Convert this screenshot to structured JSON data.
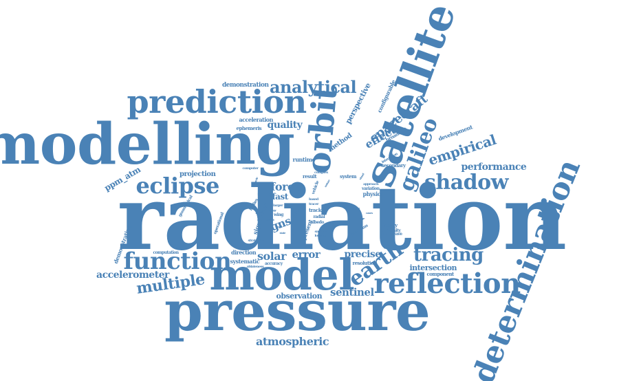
{
  "cloud": {
    "color": "#4a82b6",
    "words": [
      {
        "key": "radiation",
        "text": "radiation"
      },
      {
        "key": "modelling",
        "text": "modelling"
      },
      {
        "key": "pressure",
        "text": "pressure"
      },
      {
        "key": "model",
        "text": "model"
      },
      {
        "key": "satellite",
        "text": "satellite"
      },
      {
        "key": "determination",
        "text": "determination"
      },
      {
        "key": "prediction",
        "text": "prediction"
      },
      {
        "key": "orbit",
        "text": "orbit"
      },
      {
        "key": "reflection",
        "text": "reflection"
      },
      {
        "key": "function",
        "text": "function"
      },
      {
        "key": "eclipse",
        "text": "eclipse"
      },
      {
        "key": "shadow",
        "text": "shadow"
      },
      {
        "key": "galileo",
        "text": "galileo"
      },
      {
        "key": "earth",
        "text": "earth"
      },
      {
        "key": "tracing",
        "text": "tracing"
      },
      {
        "key": "analytical",
        "text": "analytical"
      },
      {
        "key": "multiple",
        "text": "multiple"
      },
      {
        "key": "empirical",
        "text": "empirical"
      },
      {
        "key": "spacecraft",
        "text": "spacecraft"
      },
      {
        "key": "atmospheric",
        "text": "atmospheric"
      },
      {
        "key": "accelerometer",
        "text": "accelerometer"
      },
      {
        "key": "sentinel",
        "text": "sentinel"
      },
      {
        "key": "performance",
        "text": "performance"
      },
      {
        "key": "quality",
        "text": "quality"
      },
      {
        "key": "force",
        "text": "force"
      },
      {
        "key": "solar",
        "text": "solar"
      },
      {
        "key": "error",
        "text": "error"
      },
      {
        "key": "precise",
        "text": "precise"
      },
      {
        "key": "effect",
        "text": "effect"
      },
      {
        "key": "gns",
        "text": "gns"
      },
      {
        "key": "observation",
        "text": "observation"
      },
      {
        "key": "ppm_atm",
        "text": "ppm_atm"
      },
      {
        "key": "demonstration",
        "text": "demonstration"
      },
      {
        "key": "acceleration",
        "text": "acceleration"
      },
      {
        "key": "ephemeris",
        "text": "ephemeris"
      },
      {
        "key": "perspective",
        "text": "perspective"
      },
      {
        "key": "configurable",
        "text": "configurable"
      },
      {
        "key": "method",
        "text": "method"
      },
      {
        "key": "broadcast",
        "text": "broadcast"
      },
      {
        "key": "development",
        "text": "development"
      },
      {
        "key": "intersection",
        "text": "intersection"
      },
      {
        "key": "component",
        "text": "component"
      },
      {
        "key": "resolution",
        "text": "resolution"
      },
      {
        "key": "projection",
        "text": "projection"
      },
      {
        "key": "runtime",
        "text": "runtime"
      },
      {
        "key": "computer",
        "text": "computer"
      },
      {
        "key": "result",
        "text": "result"
      },
      {
        "key": "system",
        "text": "system"
      },
      {
        "key": "secondary",
        "text": "secondary"
      },
      {
        "key": "interaction",
        "text": "interaction"
      },
      {
        "key": "approach",
        "text": "approach"
      },
      {
        "key": "variation",
        "text": "variation"
      },
      {
        "key": "physical",
        "text": "physical"
      },
      {
        "key": "fast",
        "text": "fast"
      },
      {
        "key": "study",
        "text": "study"
      },
      {
        "key": "direction",
        "text": "direction"
      },
      {
        "key": "systematic",
        "text": "systematic"
      },
      {
        "key": "accuracy",
        "text": "accuracy"
      },
      {
        "key": "computation",
        "text": "computation"
      },
      {
        "key": "demonstrating",
        "text": "demonstrating"
      },
      {
        "key": "fidelity",
        "text": "fidelity"
      },
      {
        "key": "university",
        "text": "university"
      },
      {
        "key": "shortwave",
        "text": "shortwave"
      },
      {
        "key": "significant",
        "text": "significant"
      },
      {
        "key": "operational",
        "text": "operational"
      },
      {
        "key": "geometrical",
        "text": "geometrical"
      },
      {
        "key": "bodies",
        "text": "bodies"
      },
      {
        "key": "larger",
        "text": "larger"
      },
      {
        "key": "wing",
        "text": "wing"
      },
      {
        "key": "vehicle",
        "text": "vehicle"
      },
      {
        "key": "space",
        "text": "space"
      },
      {
        "key": "present",
        "text": "present"
      },
      {
        "key": "track",
        "text": "track"
      },
      {
        "key": "radial",
        "text": "radial"
      },
      {
        "key": "albedo",
        "text": "albedo"
      },
      {
        "key": "problems",
        "text": "problems"
      },
      {
        "key": "ablateness",
        "text": "ablateness"
      },
      {
        "key": "strategies",
        "text": "strategies"
      },
      {
        "key": "complex",
        "text": "complex"
      },
      {
        "key": "location",
        "text": "location"
      },
      {
        "key": "smaller",
        "text": "smaller"
      },
      {
        "key": "based",
        "text": "based"
      },
      {
        "key": "tracer",
        "text": "tracer"
      },
      {
        "key": "dynamic",
        "text": "dynamic"
      },
      {
        "key": "nature",
        "text": "nature"
      },
      {
        "key": "energy",
        "text": "energy"
      },
      {
        "key": "physic",
        "text": "physic"
      },
      {
        "key": "impact",
        "text": "impact"
      },
      {
        "key": "small",
        "text": "small"
      },
      {
        "key": "visual",
        "text": "visual"
      },
      {
        "key": "orbital",
        "text": "orbital"
      },
      {
        "key": "state",
        "text": "state"
      },
      {
        "key": "applied",
        "text": "applied"
      },
      {
        "key": "usage",
        "text": "usage"
      },
      {
        "key": "cases",
        "text": "cases"
      }
    ]
  }
}
